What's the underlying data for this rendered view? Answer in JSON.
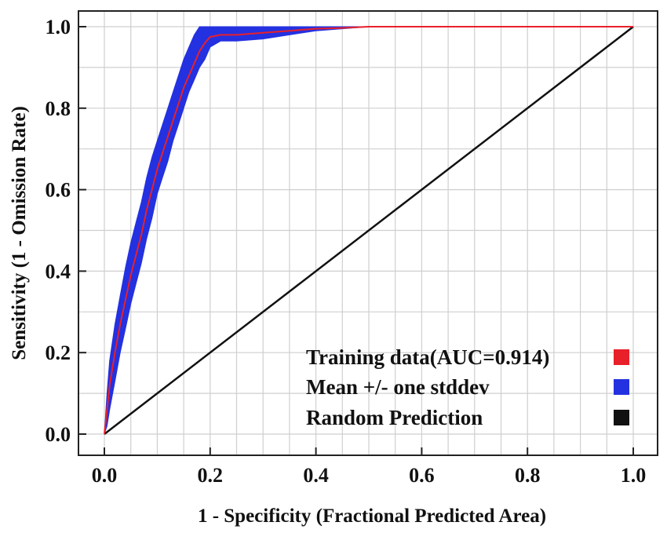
{
  "chart_data": {
    "type": "line",
    "xlabel": "1 - Specificity (Fractional Predicted Area)",
    "ylabel": "Sensitivity (1 - Omission Rate)",
    "xlim": [
      0,
      1
    ],
    "ylim": [
      0,
      1
    ],
    "x_ticks": [
      "0.0",
      "0.2",
      "0.4",
      "0.6",
      "0.8",
      "1.0"
    ],
    "y_ticks": [
      "0.0",
      "0.2",
      "0.4",
      "0.6",
      "0.8",
      "1.0"
    ],
    "grid": true,
    "legend_position": "bottom-right",
    "series": [
      {
        "name": "Training data(AUC=0.914)",
        "color": "#e8202a",
        "x": [
          0,
          0.005,
          0.01,
          0.02,
          0.03,
          0.04,
          0.05,
          0.06,
          0.07,
          0.08,
          0.09,
          0.1,
          0.11,
          0.12,
          0.13,
          0.14,
          0.15,
          0.16,
          0.17,
          0.18,
          0.19,
          0.2,
          0.22,
          0.25,
          0.3,
          0.35,
          0.4,
          0.45,
          0.5,
          0.6,
          0.7,
          0.8,
          0.9,
          1.0
        ],
        "y": [
          0,
          0.06,
          0.12,
          0.2,
          0.27,
          0.33,
          0.39,
          0.44,
          0.49,
          0.55,
          0.6,
          0.65,
          0.69,
          0.73,
          0.77,
          0.81,
          0.85,
          0.88,
          0.91,
          0.94,
          0.96,
          0.975,
          0.98,
          0.98,
          0.985,
          0.99,
          0.995,
          0.997,
          1.0,
          1.0,
          1.0,
          1.0,
          1.0,
          1.0
        ]
      },
      {
        "name": "Mean +/- one stddev",
        "color": "#2431e0",
        "x": [
          0,
          0.005,
          0.01,
          0.02,
          0.03,
          0.04,
          0.05,
          0.06,
          0.07,
          0.08,
          0.09,
          0.1,
          0.11,
          0.12,
          0.13,
          0.14,
          0.15,
          0.16,
          0.17,
          0.18,
          0.19,
          0.2,
          0.22,
          0.25,
          0.3,
          0.35,
          0.4,
          0.45,
          0.5,
          0.6,
          0.7,
          0.8,
          0.9,
          1.0
        ],
        "lower": [
          0,
          0.02,
          0.06,
          0.13,
          0.2,
          0.26,
          0.32,
          0.37,
          0.42,
          0.48,
          0.53,
          0.59,
          0.63,
          0.67,
          0.72,
          0.76,
          0.8,
          0.84,
          0.87,
          0.9,
          0.92,
          0.95,
          0.965,
          0.965,
          0.97,
          0.98,
          0.99,
          0.995,
          1.0,
          1.0,
          1.0,
          1.0,
          1.0,
          1.0
        ],
        "upper": [
          0,
          0.1,
          0.18,
          0.27,
          0.34,
          0.41,
          0.47,
          0.52,
          0.57,
          0.63,
          0.68,
          0.72,
          0.76,
          0.8,
          0.84,
          0.88,
          0.92,
          0.95,
          0.98,
          1.0,
          1.0,
          1.0,
          1.0,
          1.0,
          1.0,
          1.0,
          1.0,
          1.0,
          1.0,
          1.0,
          1.0,
          1.0,
          1.0,
          1.0
        ]
      },
      {
        "name": "Random Prediction",
        "color": "#111111",
        "x": [
          0,
          1
        ],
        "y": [
          0,
          1
        ]
      }
    ]
  }
}
